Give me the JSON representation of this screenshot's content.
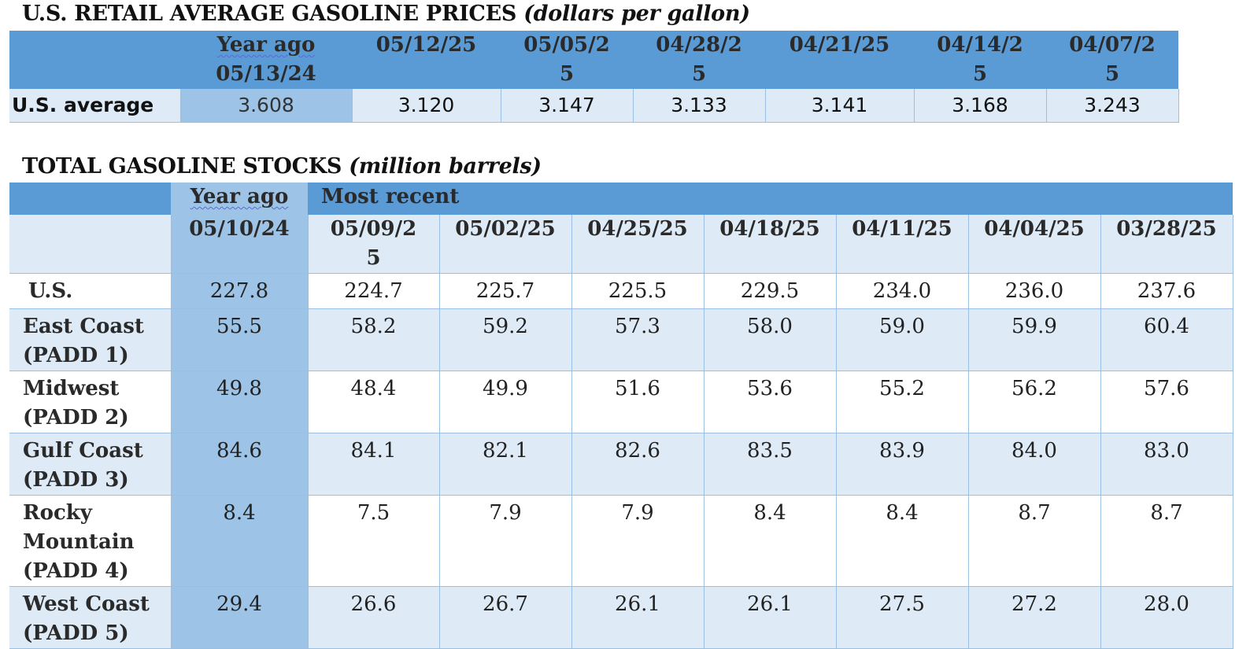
{
  "prices": {
    "title": "U.S. RETAIL AVERAGE GASOLINE PRICES",
    "unit": "(dollars per gallon)",
    "header": {
      "year_ago_label": "Year ago",
      "year_ago_date": "05/13/24",
      "dates": [
        [
          "05/12/25"
        ],
        [
          "05/05/2",
          "5"
        ],
        [
          "04/28/2",
          "5"
        ],
        [
          "04/21/25"
        ],
        [
          "04/14/2",
          "5"
        ],
        [
          "04/07/2",
          "5"
        ]
      ]
    },
    "row": {
      "label": "U.S. average",
      "year_ago": "3.608",
      "values": [
        "3.120",
        "3.147",
        "3.133",
        "3.141",
        "3.168",
        "3.243"
      ]
    }
  },
  "stocks": {
    "title": "TOTAL GASOLINE STOCKS",
    "unit": "(million barrels)",
    "group_labels": {
      "year_ago": "Year ago",
      "most_recent": "Most recent"
    },
    "year_ago_date": "05/10/24",
    "dates": [
      [
        "05/09/2",
        "5"
      ],
      [
        "05/02/25"
      ],
      [
        "04/25/25"
      ],
      [
        "04/18/25"
      ],
      [
        "04/11/25"
      ],
      [
        "04/04/25"
      ],
      [
        "03/28/25"
      ]
    ],
    "rows": [
      {
        "label": [
          "U.S."
        ],
        "year_ago": "227.8",
        "values": [
          "224.7",
          "225.7",
          "225.5",
          "229.5",
          "234.0",
          "236.0",
          "237.6"
        ]
      },
      {
        "label": [
          "East Coast",
          "(PADD 1)"
        ],
        "year_ago": "55.5",
        "values": [
          "58.2",
          "59.2",
          "57.3",
          "58.0",
          "59.0",
          "59.9",
          "60.4"
        ]
      },
      {
        "label": [
          "Midwest",
          "(PADD 2)"
        ],
        "year_ago": "49.8",
        "values": [
          "48.4",
          "49.9",
          "51.6",
          "53.6",
          "55.2",
          "56.2",
          "57.6"
        ]
      },
      {
        "label": [
          "Gulf Coast",
          "(PADD 3)"
        ],
        "year_ago": "84.6",
        "values": [
          "84.1",
          "82.1",
          "82.6",
          "83.5",
          "83.9",
          "84.0",
          "83.0"
        ]
      },
      {
        "label": [
          "Rocky",
          "Mountain",
          "(PADD 4)"
        ],
        "year_ago": "8.4",
        "values": [
          "7.5",
          "7.9",
          "7.9",
          "8.4",
          "8.4",
          "8.7",
          "8.7"
        ]
      },
      {
        "label": [
          "West Coast",
          "(PADD 5)"
        ],
        "year_ago": "29.4",
        "values": [
          "26.6",
          "26.7",
          "26.1",
          "26.1",
          "27.5",
          "27.2",
          "28.0"
        ]
      }
    ]
  }
}
